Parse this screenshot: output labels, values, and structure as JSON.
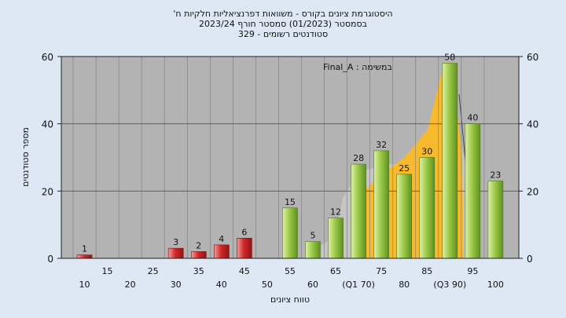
{
  "chart_data": {
    "type": "bar",
    "title_lines": [
      "היסטוגרמת ציונים בקורס - משוואות דפרנציאליות חלקיות ח'",
      "בסמסטר  (01/2023)  סמסטר חורף 2023/24",
      "סטודנטים רשומים - 329"
    ],
    "annotation": "במשימה : Final_A",
    "xlabel": "טווח ציונים",
    "ylabel": "מספר סטודנטים",
    "ylim": [
      0,
      60
    ],
    "yticks": [
      0,
      20,
      40,
      60
    ],
    "x_tick_labels": [
      "10",
      "15",
      "20",
      "25",
      "30",
      "35",
      "40",
      "45",
      "50",
      "55",
      "60",
      "65",
      "(Q1 70)",
      "75",
      "80",
      "85",
      "(Q3 90)",
      "95",
      "100"
    ],
    "categories": [
      "10",
      "15",
      "20",
      "25",
      "30",
      "35",
      "40",
      "45",
      "50",
      "55",
      "60",
      "65",
      "70",
      "75",
      "80",
      "85",
      "90",
      "95",
      "100"
    ],
    "values": [
      1,
      0,
      0,
      0,
      3,
      2,
      4,
      6,
      0,
      15,
      5,
      12,
      28,
      32,
      25,
      30,
      58,
      40,
      23
    ],
    "grid": true,
    "colors": {
      "fail": "#d42a2a",
      "pass": "#8fbf3c",
      "area_iqr": "#f7b92e",
      "area_other": "#c8c8c8",
      "plot_bg": "#b3b3b3",
      "page_bg": "#dde8f4"
    }
  }
}
